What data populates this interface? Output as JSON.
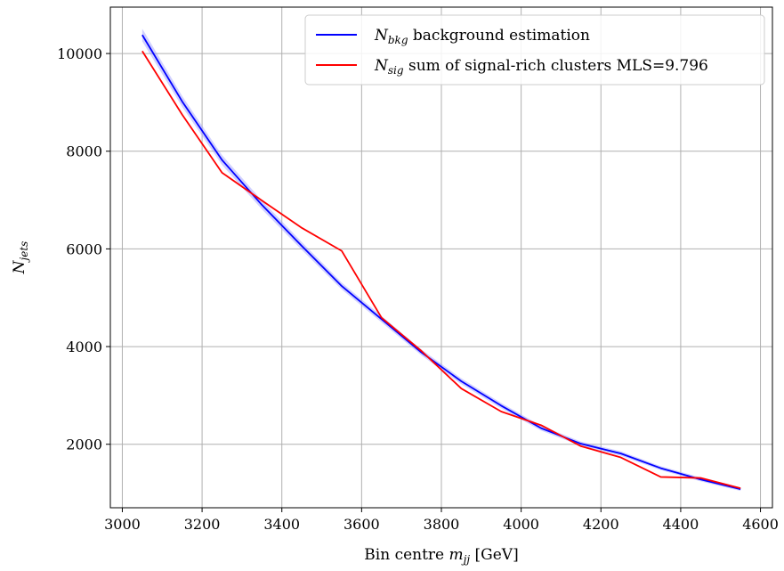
{
  "chart_data": {
    "type": "line",
    "title": "",
    "xlabel": {
      "text": "Bin centre ",
      "var": "m",
      "sub": "jj",
      "unit": " [GeV]"
    },
    "ylabel": {
      "var": "N",
      "sub": "jets"
    },
    "xlim": [
      2970,
      4630
    ],
    "ylim": [
      700,
      10950
    ],
    "xticks": [
      3000,
      3200,
      3400,
      3600,
      3800,
      4000,
      4200,
      4400,
      4600
    ],
    "yticks": [
      2000,
      4000,
      6000,
      8000,
      10000
    ],
    "grid": true,
    "legend_position": "top-right",
    "x": [
      3050,
      3150,
      3250,
      3350,
      3450,
      3550,
      3650,
      3750,
      3850,
      3950,
      4050,
      4150,
      4250,
      4350,
      4450,
      4550
    ],
    "series": [
      {
        "name": "N_bkg background estimation",
        "legend": {
          "var": "N",
          "sub": "bkg",
          "text": " background estimation"
        },
        "color": "#0000ff",
        "band_color": "#9999ff",
        "values": [
          10380,
          9020,
          7820,
          6900,
          6060,
          5240,
          4560,
          3880,
          3290,
          2790,
          2330,
          2010,
          1810,
          1510,
          1280,
          1080
        ],
        "band_halfwidth": [
          130,
          110,
          100,
          90,
          80,
          70,
          65,
          60,
          60,
          55,
          50,
          45,
          45,
          40,
          40,
          35
        ]
      },
      {
        "name": "N_sig sum of signal-rich clusters MLS=9.796",
        "legend": {
          "var": "N",
          "sub": "sig",
          "text": " sum of signal-rich clusters MLS=9.796"
        },
        "color": "#ff0000",
        "values": [
          10050,
          8750,
          7560,
          6990,
          6430,
          5960,
          4590,
          3910,
          3140,
          2670,
          2390,
          1960,
          1730,
          1330,
          1310,
          1100
        ]
      }
    ]
  }
}
